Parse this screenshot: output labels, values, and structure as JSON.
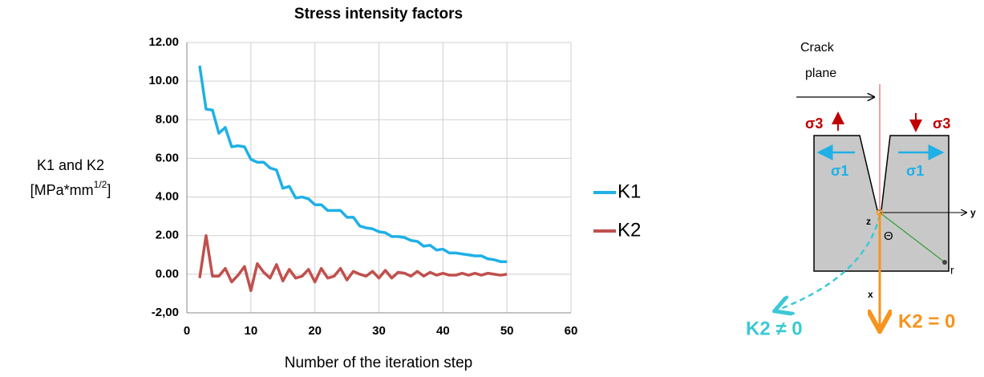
{
  "chart_data": {
    "type": "line",
    "title": "Stress intensity factors",
    "xlabel": "Number of the iteration step",
    "ylabel": "K1 and K2",
    "ylabel_unit": "[MPa*mm",
    "ylabel_unit_exponent": "1/2",
    "ylabel_unit_close": "]",
    "x": [
      2,
      3,
      4,
      5,
      6,
      7,
      8,
      9,
      10,
      11,
      12,
      13,
      14,
      15,
      16,
      17,
      18,
      19,
      20,
      21,
      22,
      23,
      24,
      25,
      26,
      27,
      28,
      29,
      30,
      31,
      32,
      33,
      34,
      35,
      36,
      37,
      38,
      39,
      40,
      41,
      42,
      43,
      44,
      45,
      46,
      47,
      48,
      49,
      50
    ],
    "series": [
      {
        "name": "K1",
        "color": "#1fb0e6",
        "values": [
          10.8,
          8.55,
          8.5,
          7.3,
          7.6,
          6.6,
          6.65,
          6.6,
          5.95,
          5.8,
          5.8,
          5.5,
          5.4,
          4.45,
          4.55,
          3.95,
          4.0,
          3.9,
          3.6,
          3.6,
          3.3,
          3.3,
          3.3,
          2.95,
          2.95,
          2.5,
          2.4,
          2.35,
          2.2,
          2.15,
          1.95,
          1.95,
          1.9,
          1.75,
          1.7,
          1.45,
          1.5,
          1.25,
          1.3,
          1.1,
          1.1,
          1.05,
          1.0,
          0.95,
          0.95,
          0.8,
          0.75,
          0.65,
          0.65
        ]
      },
      {
        "name": "K2",
        "color": "#c0504d",
        "values": [
          -0.2,
          2.0,
          -0.1,
          -0.1,
          0.3,
          -0.4,
          -0.05,
          0.4,
          -0.85,
          0.55,
          0.1,
          -0.2,
          0.5,
          -0.35,
          0.25,
          -0.2,
          -0.1,
          0.25,
          -0.4,
          0.3,
          -0.2,
          -0.1,
          0.3,
          -0.3,
          0.15,
          0.0,
          -0.1,
          0.15,
          -0.2,
          0.2,
          -0.2,
          0.1,
          0.05,
          -0.1,
          0.15,
          -0.1,
          0.1,
          -0.05,
          0.05,
          -0.05,
          -0.05,
          0.05,
          -0.05,
          0.05,
          -0.05,
          0.05,
          0.0,
          -0.05,
          0.0
        ]
      }
    ],
    "xlim": [
      0,
      60
    ],
    "xticks": [
      0,
      10,
      20,
      30,
      40,
      50,
      60
    ],
    "ylim": [
      -2,
      12
    ],
    "yticks": [
      {
        "value": -2,
        "label": "-2,00"
      },
      {
        "value": 0,
        "label": "0.00"
      },
      {
        "value": 2,
        "label": "2.00"
      },
      {
        "value": 4,
        "label": "4.00"
      },
      {
        "value": 6,
        "label": "6.00"
      },
      {
        "value": 8,
        "label": "8.00"
      },
      {
        "value": 10,
        "label": "10.00"
      },
      {
        "value": 12,
        "label": "12.00"
      }
    ],
    "grid": true,
    "legend": "right"
  },
  "diagram": {
    "crack_plane": [
      "Crack",
      "plane"
    ],
    "sigma3_left": "σ3",
    "sigma3_right": "σ3",
    "sigma1_left": "σ1",
    "sigma1_right": "σ1",
    "axis_z": "z",
    "axis_y": "y",
    "axis_x": "x",
    "angle": "Θ",
    "radius": "r",
    "k2_nonzero": "K2 ≠ 0",
    "k2_zero": "K2 = 0"
  }
}
